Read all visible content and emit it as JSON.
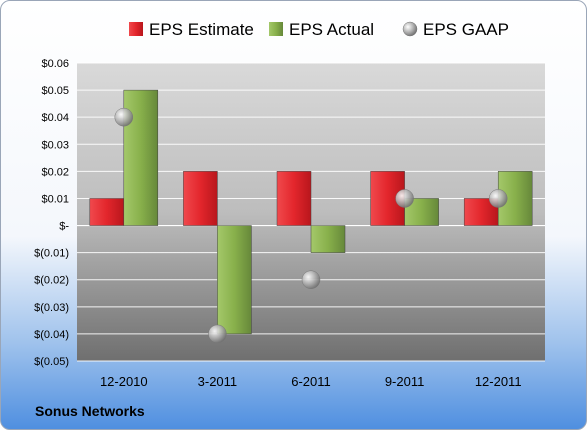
{
  "chart_data": {
    "type": "bar",
    "categories": [
      "12-2010",
      "3-2011",
      "6-2011",
      "9-2011",
      "12-2011"
    ],
    "series": [
      {
        "name": "EPS Estimate",
        "values": [
          0.01,
          0.02,
          0.02,
          0.02,
          0.01
        ],
        "color": "#e3262c",
        "kind": "bar"
      },
      {
        "name": "EPS Actual",
        "values": [
          0.05,
          -0.04,
          -0.01,
          0.01,
          0.02
        ],
        "color": "#88b04b",
        "kind": "bar"
      },
      {
        "name": "EPS GAAP",
        "values": [
          0.04,
          -0.04,
          -0.02,
          0.01,
          0.01
        ],
        "color": "#a6a6a6",
        "kind": "point"
      }
    ],
    "yticks": [
      "$0.06",
      "$0.05",
      "$0.04",
      "$0.03",
      "$0.02",
      "$0.01",
      "$-",
      "$(0.01)",
      "$(0.02)",
      "$(0.03)",
      "$(0.04)",
      "$(0.05)"
    ],
    "ylim": [
      -0.05,
      0.06
    ],
    "legend_position": "top",
    "grid": true
  },
  "footer": {
    "company": "Sonus Networks"
  }
}
